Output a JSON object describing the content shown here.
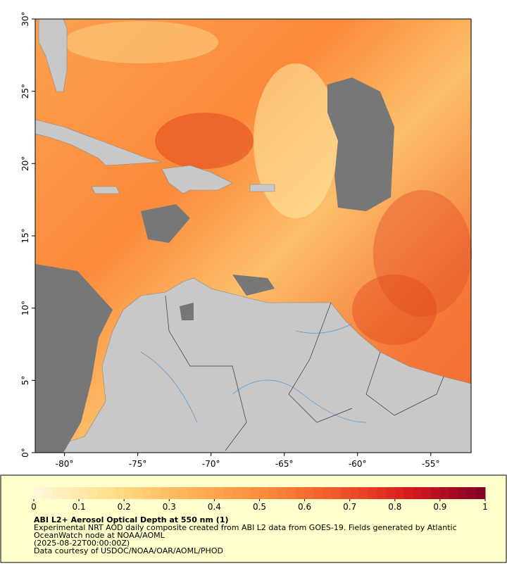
{
  "map": {
    "xlim": [
      -82,
      -52.25
    ],
    "ylim": [
      0,
      30
    ],
    "xticks": [
      {
        "value": -80,
        "label": "-80°"
      },
      {
        "value": -75,
        "label": "-75°"
      },
      {
        "value": -70,
        "label": "-70°"
      },
      {
        "value": -65,
        "label": "-65°"
      },
      {
        "value": -60,
        "label": "-60°"
      },
      {
        "value": -55,
        "label": "-55°"
      }
    ],
    "yticks": [
      {
        "value": 0,
        "label": "0°"
      },
      {
        "value": 5,
        "label": "5°"
      },
      {
        "value": 10,
        "label": "10°"
      },
      {
        "value": 15,
        "label": "15°"
      },
      {
        "value": 20,
        "label": "20°"
      },
      {
        "value": 25,
        "label": "25°"
      },
      {
        "value": 30,
        "label": "30°"
      }
    ]
  },
  "colorbar": {
    "range": [
      0,
      1
    ],
    "ticks": [
      0,
      0.1,
      0.2,
      0.3,
      0.4,
      0.5,
      0.6,
      0.7,
      0.8,
      0.9,
      1
    ],
    "colors": [
      "#fff8dc",
      "#fee08b",
      "#fdb55a",
      "#fc8d3c",
      "#f25a2a",
      "#d7191c",
      "#800026"
    ]
  },
  "caption": {
    "title": "ABI L2+ Aerosol Optical Depth at 550 nm (1)",
    "lines": [
      "Experimental NRT AOD daily composite created from ABI L2 data from GOES-19. Fields generated by Atlantic",
      "OceanWatch node at NOAA/AOML",
      "(2025-08-22T00:00:00Z)",
      "Data courtesy of USDOC/NOAA/OAR/AOML/PHOD"
    ]
  }
}
